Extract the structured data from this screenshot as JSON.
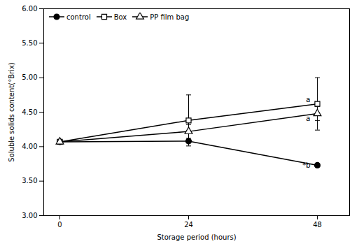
{
  "chart_data": {
    "type": "line",
    "x": [
      0,
      24,
      48
    ],
    "xlim": [
      -3,
      54
    ],
    "xticks": [
      0,
      24,
      48
    ],
    "ylim": [
      3.0,
      6.0
    ],
    "yticks": [
      {
        "value": 3.0,
        "label": "3.00"
      },
      {
        "value": 3.5,
        "label": "3.50"
      },
      {
        "value": 4.0,
        "label": "4.00"
      },
      {
        "value": 4.5,
        "label": "4.50"
      },
      {
        "value": 5.0,
        "label": "5.00"
      },
      {
        "value": 5.5,
        "label": "5.50"
      },
      {
        "value": 6.0,
        "label": "6.00"
      }
    ],
    "xlabel": "Storage period (hours)",
    "ylabel": "Soluble solids content(°Brix)",
    "series": [
      {
        "name": "control",
        "color": "#000000",
        "marker": "circle",
        "values": [
          4.07,
          4.08,
          3.73
        ],
        "errors": [
          0.0,
          0.0,
          0.0
        ]
      },
      {
        "name": "Box",
        "color": "#000000",
        "marker": "open square",
        "values": [
          4.07,
          4.38,
          4.62
        ],
        "errors": [
          0.0,
          0.37,
          0.38
        ]
      },
      {
        "name": "PP film bag",
        "color": "#000000",
        "marker": "open triangle",
        "values": [
          4.07,
          4.22,
          4.48
        ],
        "errors": [
          0.0,
          0.1,
          0.1
        ]
      }
    ],
    "annotations": [
      {
        "text": "a",
        "x": 48,
        "y": 4.62
      },
      {
        "text": "a",
        "x": 48,
        "y": 4.48
      },
      {
        "text": "*b",
        "x": 48,
        "y": 3.73
      }
    ],
    "legend": "upper left",
    "grid": false
  }
}
